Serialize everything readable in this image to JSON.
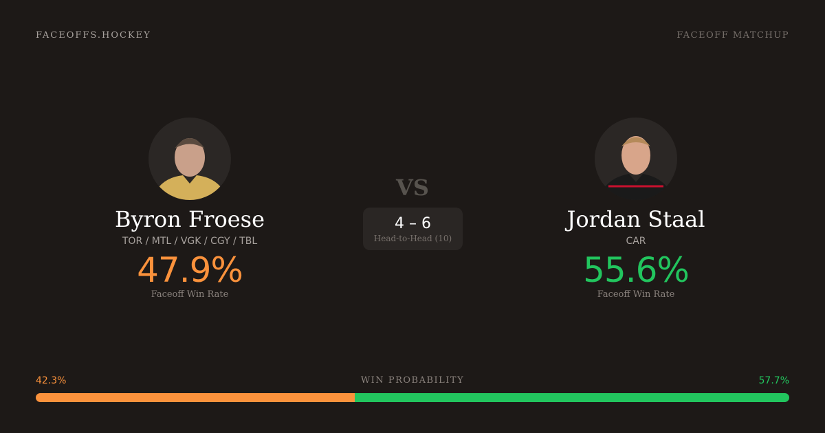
{
  "header": {
    "brand": "FACEOFFS.HOCKEY",
    "page_type": "FACEOFF MATCHUP"
  },
  "players": [
    {
      "name": "Byron Froese",
      "teams": "TOR / MTL / VGK / CGY / TBL",
      "win_rate": "47.9%",
      "win_rate_label": "Faceoff Win Rate",
      "color": "#fb923c"
    },
    {
      "name": "Jordan Staal",
      "teams": "CAR",
      "win_rate": "55.6%",
      "win_rate_label": "Faceoff Win Rate",
      "color": "#22c55e"
    }
  ],
  "vs": "VS",
  "head_to_head": {
    "score": "4 – 6",
    "label": "Head-to-Head (10)"
  },
  "win_probability": {
    "label": "WIN PROBABILITY",
    "left": "42.3%",
    "right": "57.7%",
    "left_value": 42.3,
    "right_value": 57.7
  }
}
